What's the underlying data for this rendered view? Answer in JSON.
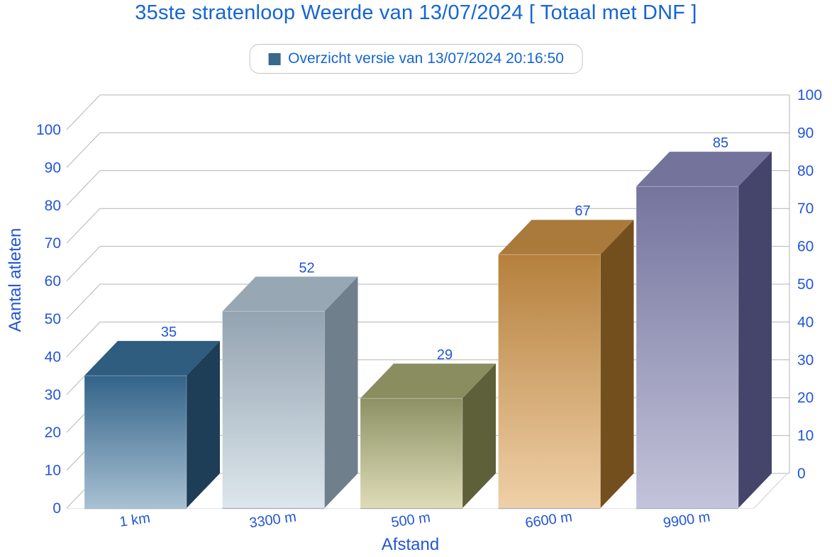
{
  "chart_data": {
    "type": "bar",
    "projection": "3d",
    "title": "35ste stratenloop Weerde van 13/07/2024 [ Totaal met DNF ]",
    "legend": [
      "Overzicht versie van 13/07/2024 20:16:50"
    ],
    "legend_position": "top",
    "categories": [
      "1 km",
      "3300 m",
      "500 m",
      "6600 m",
      "9900 m"
    ],
    "values": [
      35,
      52,
      29,
      67,
      85
    ],
    "xlabel": "Afstand",
    "ylabel": "Aantal atleten",
    "ylim": [
      0,
      100
    ],
    "ytick_step": 10,
    "grid": true,
    "dual_y_axis": true,
    "bar_colors": [
      {
        "top": "#2e5d80",
        "front_top": "#336389",
        "front_bottom": "#a8c0d2",
        "side": "#1e3d56"
      },
      {
        "top": "#97a7b4",
        "front_top": "#93a3b1",
        "front_bottom": "#dde6ec",
        "side": "#6f7f8b"
      },
      {
        "top": "#8a8d60",
        "front_top": "#8d9164",
        "front_bottom": "#dedcb8",
        "side": "#5d6039"
      },
      {
        "top": "#a97a3c",
        "front_top": "#b5803c",
        "front_bottom": "#f0d0a8",
        "side": "#744f1e"
      },
      {
        "top": "#73739b",
        "front_top": "#74749e",
        "front_bottom": "#c3c3da",
        "side": "#45456b"
      }
    ]
  },
  "colors": {
    "title_text": "#1565d4",
    "axis_text": "#2255d8",
    "grid_line": "#b4b4b4",
    "legend_border": "#c4c4c4",
    "legend_marker": "#38688c",
    "background": "#ffffff"
  }
}
